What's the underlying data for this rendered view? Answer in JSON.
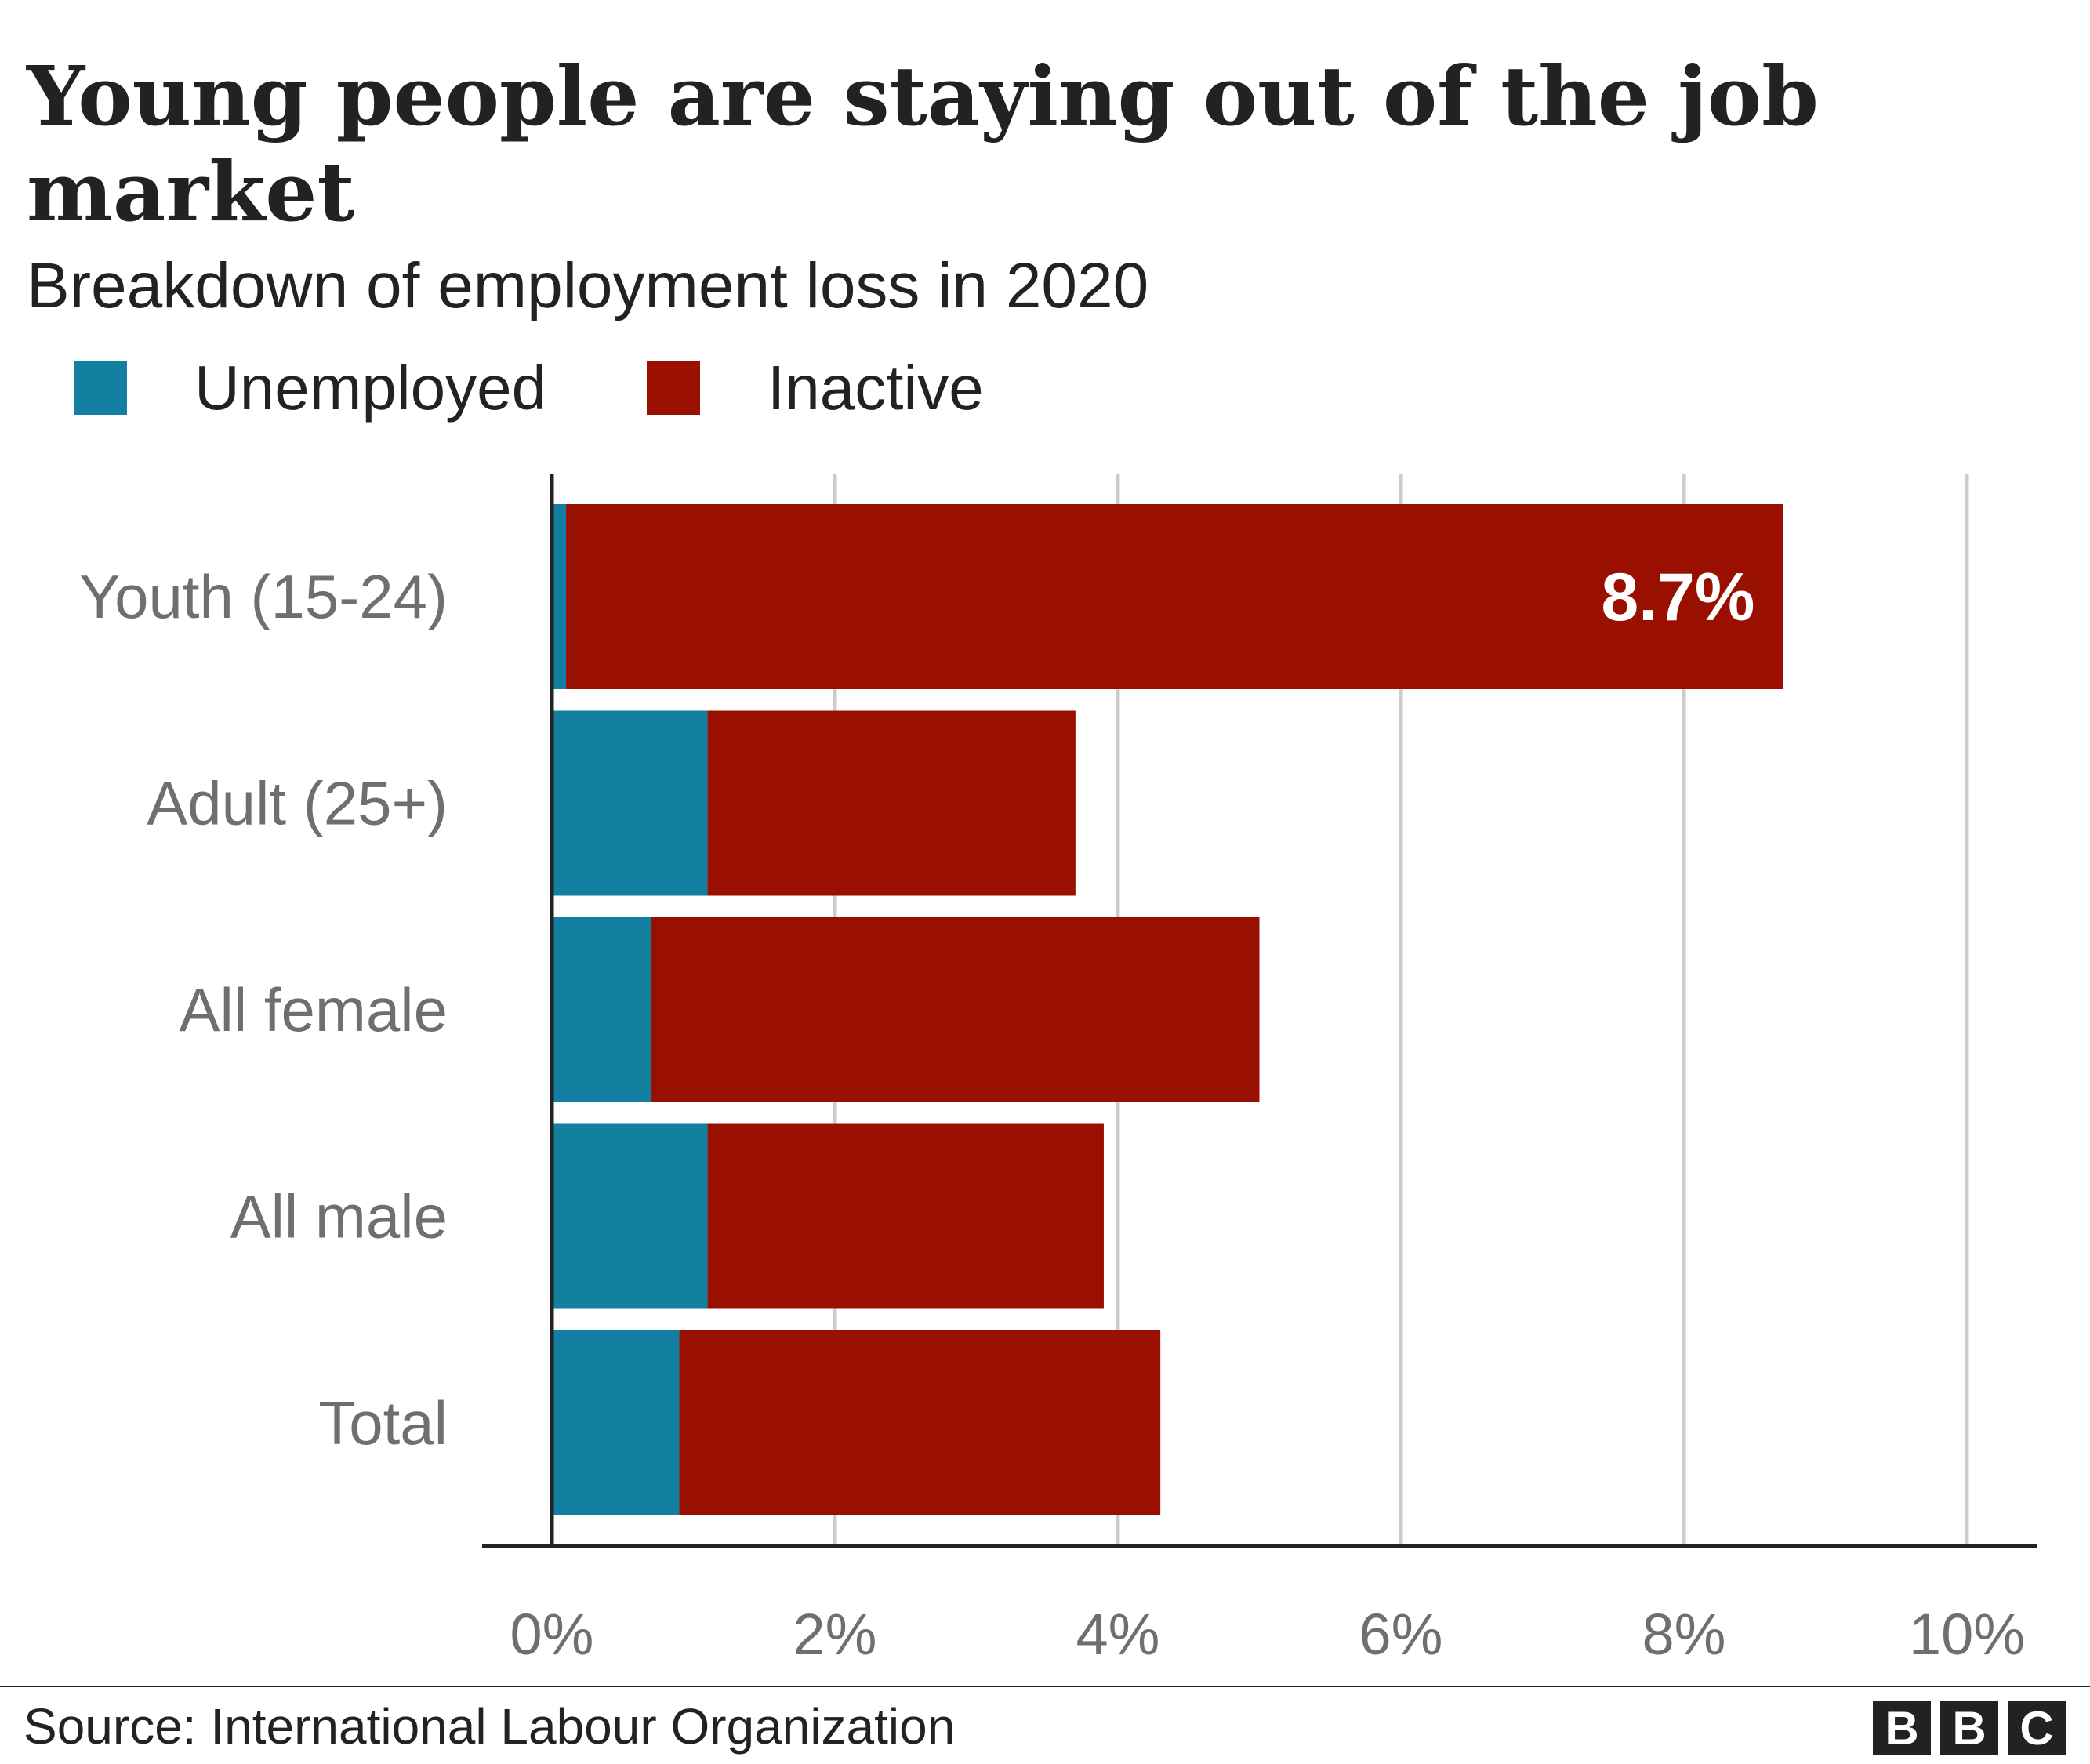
{
  "chart_data": {
    "type": "bar",
    "orientation": "horizontal",
    "stacked": true,
    "title": "Young people are staying out of the job market",
    "subtitle": "Breakdown of employment loss in 2020",
    "categories": [
      "Youth (15-24)",
      "Adult (25+)",
      "All female",
      "All male",
      "Total"
    ],
    "series": [
      {
        "name": "Unemployed",
        "color": "#1380a1",
        "values": [
          0.1,
          1.1,
          0.7,
          1.1,
          0.9
        ]
      },
      {
        "name": "Inactive",
        "color": "#990f00",
        "values": [
          8.6,
          2.6,
          4.3,
          2.8,
          3.4
        ]
      }
    ],
    "annotations": [
      {
        "category": "Youth (15-24)",
        "text": "8.7%"
      }
    ],
    "xlim": [
      0,
      10
    ],
    "xticks": [
      "0%",
      "2%",
      "4%",
      "6%",
      "8%",
      "10%"
    ],
    "grid": true,
    "legend": "top-left"
  },
  "footer": {
    "source": "Source: International Labour Organization",
    "logo": [
      "B",
      "B",
      "C"
    ]
  }
}
